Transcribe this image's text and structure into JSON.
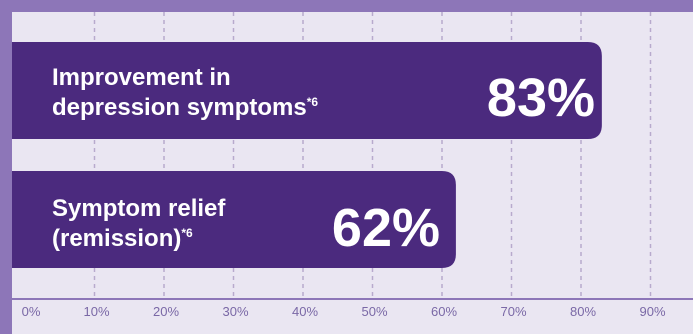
{
  "chart_data": {
    "type": "bar",
    "orientation": "horizontal",
    "categories": [
      "Improvement in depression symptoms*6",
      "Symptom relief (remission)*6"
    ],
    "bars": [
      {
        "label_line1": "Improvement in",
        "label_line2": "depression symptoms",
        "footnote": "*6",
        "value": 83,
        "value_label": "83%"
      },
      {
        "label_line1": "Symptom relief",
        "label_line2": "(remission)",
        "footnote": "*6",
        "value": 62,
        "value_label": "62%"
      }
    ],
    "xlim": [
      0,
      90
    ],
    "x_ticks": [
      "0%",
      "10%",
      "20%",
      "30%",
      "40%",
      "50%",
      "60%",
      "70%",
      "80%",
      "90%"
    ],
    "grid": true,
    "colors": {
      "bar": "#4b2a7e",
      "background": "#eae6f2",
      "border": "#8d76b8",
      "grid": "#b8aacd",
      "tick_label": "#7a68a6"
    }
  }
}
